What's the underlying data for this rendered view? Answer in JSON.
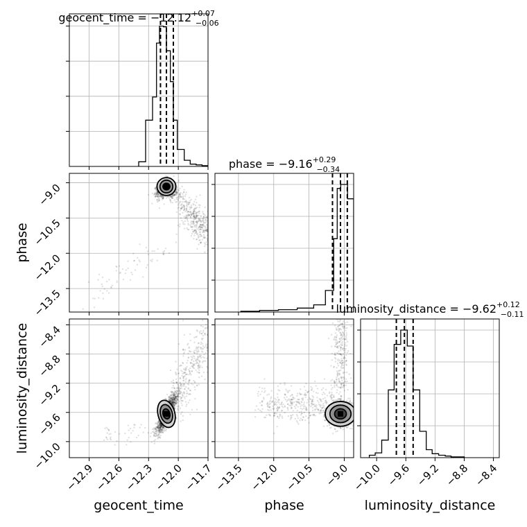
{
  "chart_data": {
    "type": "corner",
    "parameters": [
      "geocent_time",
      "phase",
      "luminosity_distance"
    ],
    "titles": [
      {
        "name": "geocent_time",
        "value": "−12.12",
        "plus": "+0.07",
        "minus": "−0.06"
      },
      {
        "name": "phase",
        "value": "−9.16",
        "plus": "+0.29",
        "minus": "−0.34"
      },
      {
        "name": "luminosity_distance",
        "value": "−9.62",
        "plus": "+0.12",
        "minus": "−0.11"
      }
    ],
    "axes": {
      "geocent_time": {
        "range": [
          -13.1,
          -11.7
        ],
        "ticks": [
          -12.9,
          -12.6,
          -12.3,
          -12.0,
          -11.7
        ],
        "tick_labels": [
          "−12.9",
          "−12.6",
          "−12.3",
          "−12.0",
          "−11.7"
        ]
      },
      "phase": {
        "range": [
          -14.5,
          -8.6
        ],
        "ticks": [
          -13.5,
          -12.0,
          -10.5,
          -9.0
        ],
        "tick_labels": [
          "−13.5",
          "−12.0",
          "−10.5",
          "−9.0"
        ]
      },
      "luminosity_distance": {
        "range": [
          -10.22,
          -8.32
        ],
        "ticks": [
          -10.0,
          -9.6,
          -9.2,
          -8.8,
          -8.4
        ],
        "tick_labels": [
          "−10.0",
          "−9.6",
          "−9.2",
          "−8.8",
          "−8.4"
        ]
      }
    },
    "histograms": {
      "geocent_time": {
        "bin_edges": [
          -12.4,
          -12.33,
          -12.26,
          -12.22,
          -12.19,
          -12.15,
          -12.12,
          -12.08,
          -12.05,
          -12.01,
          -11.94,
          -11.88,
          -11.82,
          -11.76,
          -11.7
        ],
        "counts": [
          6,
          60,
          90,
          160,
          182,
          181,
          150,
          110,
          60,
          22,
          8,
          3,
          2,
          1
        ],
        "quantiles": [
          -12.18,
          -12.12,
          -12.05
        ]
      },
      "phase": {
        "bin_edges": [
          -13.4,
          -12.6,
          -11.8,
          -11.0,
          -10.3,
          -9.8,
          -9.45,
          -9.3,
          -9.15,
          -9.0,
          -8.86,
          -8.6
        ],
        "counts": [
          1,
          2,
          3,
          5,
          9,
          27,
          92,
          155,
          160,
          160,
          142
        ],
        "quantiles": [
          -9.5,
          -9.16,
          -8.87
        ]
      },
      "luminosity_distance": {
        "bin_edges": [
          -10.1,
          -10.02,
          -9.93,
          -9.84,
          -9.76,
          -9.67,
          -9.58,
          -9.5,
          -9.41,
          -9.32,
          -9.24,
          -9.15,
          -9.06,
          -8.98,
          -8.89,
          -8.8
        ],
        "counts": [
          3,
          6,
          22,
          85,
          142,
          160,
          140,
          85,
          33,
          10,
          5,
          3,
          2,
          1,
          1
        ],
        "quantiles": [
          -9.73,
          -9.62,
          -9.5
        ]
      }
    },
    "grid": true,
    "legend": "none"
  }
}
